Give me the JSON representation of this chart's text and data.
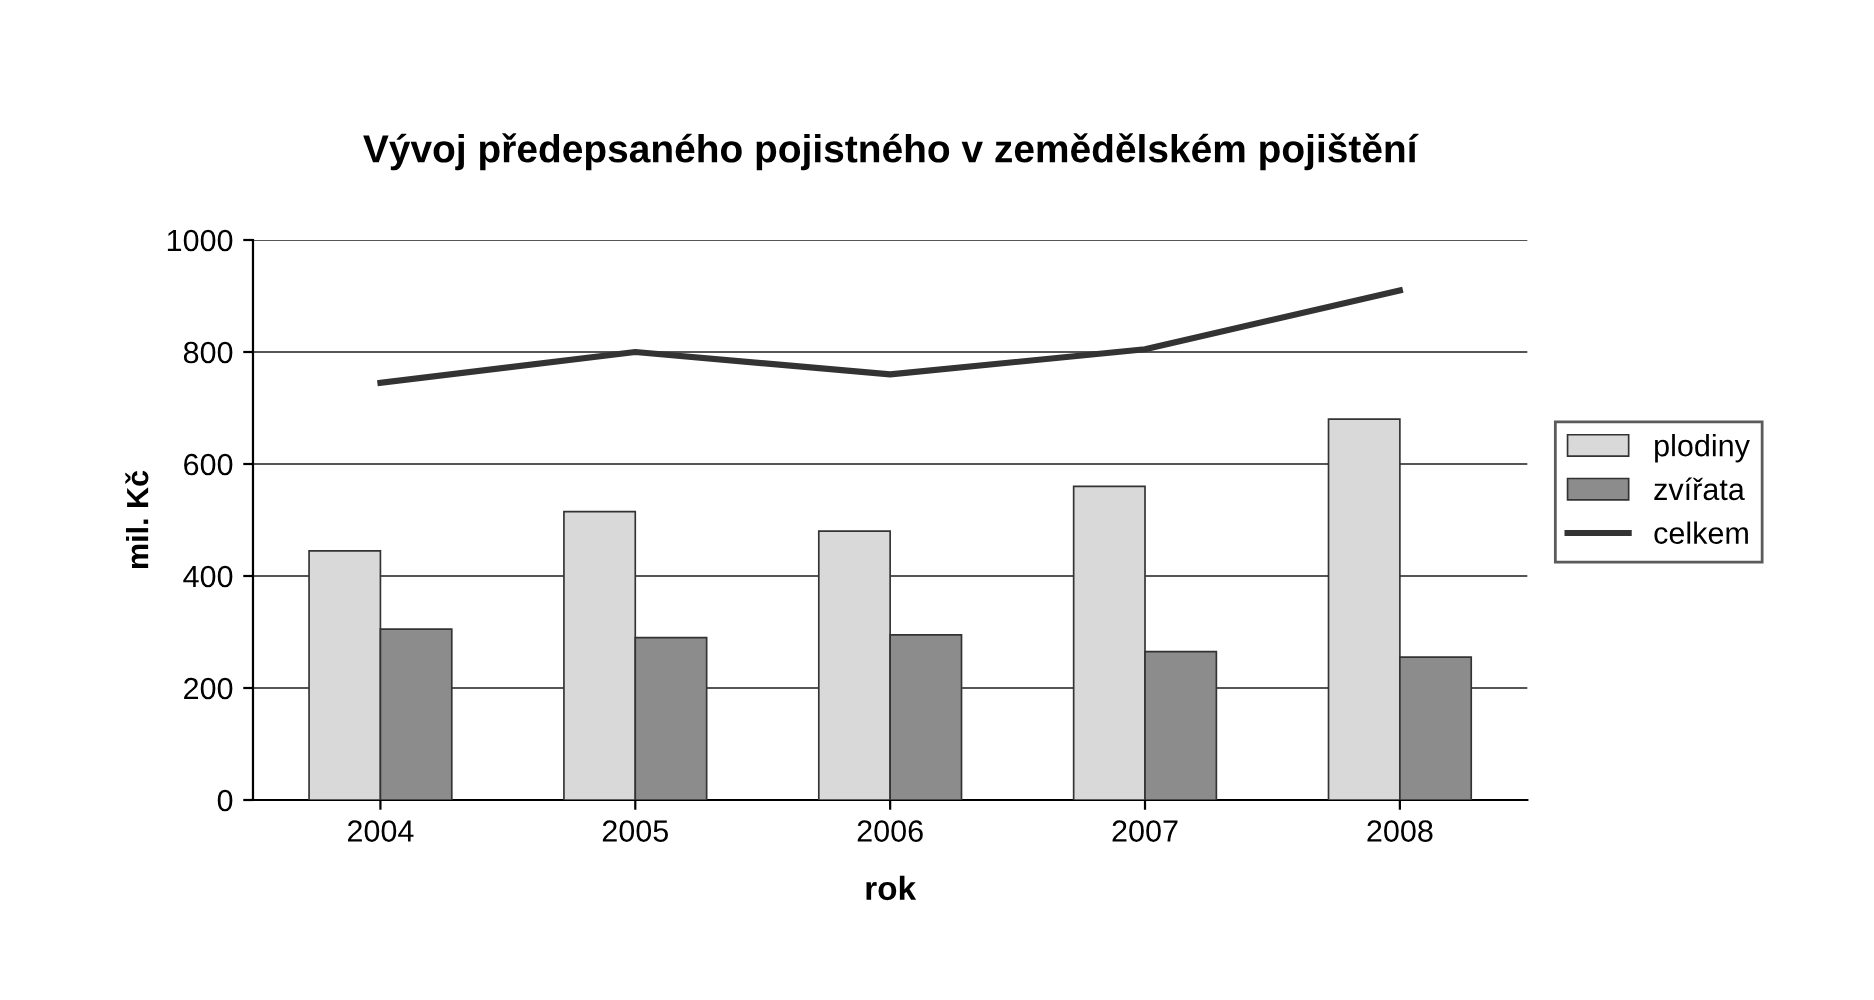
{
  "chart_data": {
    "type": "bar",
    "title": "Vývoj předepsaného pojistného v zemědělském pojištění",
    "xlabel": "rok",
    "ylabel": "mil. Kč",
    "categories": [
      "2004",
      "2005",
      "2006",
      "2007",
      "2008"
    ],
    "series": [
      {
        "name": "plodiny",
        "color": "#d9d9d9",
        "values": [
          445,
          515,
          480,
          560,
          680
        ]
      },
      {
        "name": "zvířata",
        "color": "#8c8c8c",
        "values": [
          305,
          290,
          295,
          265,
          255
        ]
      },
      {
        "name": "celkem",
        "type": "line",
        "color": "#333333",
        "values": [
          745,
          800,
          760,
          805,
          910
        ]
      }
    ],
    "ylim": [
      0,
      1000
    ],
    "yticks": [
      0,
      200,
      400,
      600,
      800,
      1000
    ],
    "grid": "y",
    "legend": "right"
  }
}
